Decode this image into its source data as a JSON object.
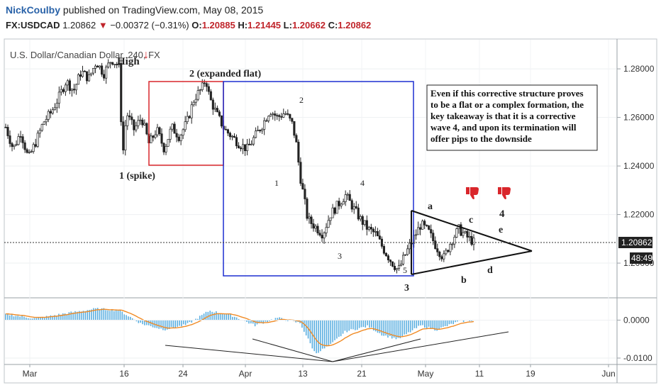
{
  "header": {
    "author": "NickCoulby",
    "published_text": "published on TradingView.com, May 08, 2015",
    "symbol": "FX:USDCAD",
    "last": "1.20862",
    "change_arrow": "▼",
    "change": "−0.00372 (−0.31%)",
    "o_label": "O:",
    "o": "1.20885",
    "h_label": "H:",
    "h": "1.21445",
    "l_label": "L:",
    "l": "1.20662",
    "c_label": "C:",
    "c": "1.20862"
  },
  "chart_data": [
    {
      "type": "candlestick",
      "title": "U.S. Dollar/Canadian Dollar, 240, FX",
      "y_ticks": [
        "1.28000",
        "1.26000",
        "1.24000",
        "1.22000",
        "1.20000"
      ],
      "ylim": [
        1.186,
        1.292
      ],
      "x_ticks": [
        "Mar",
        "16",
        "24",
        "Apr",
        "13",
        "21",
        "May",
        "11",
        "19",
        "Jun"
      ],
      "last_price_label": "1.20862",
      "countdown_label": "48:49",
      "price_path": [
        [
          0,
          1.256
        ],
        [
          1,
          1.247
        ],
        [
          2,
          1.254
        ],
        [
          3,
          1.243
        ],
        [
          4,
          1.25
        ],
        [
          5,
          1.258
        ],
        [
          6,
          1.262
        ],
        [
          7,
          1.268
        ],
        [
          8,
          1.275
        ],
        [
          9,
          1.271
        ],
        [
          10,
          1.279
        ],
        [
          11,
          1.276
        ],
        [
          12,
          1.283
        ],
        [
          13,
          1.278
        ],
        [
          14,
          1.284
        ],
        [
          15,
          1.281
        ],
        [
          15.5,
          1.244
        ],
        [
          16,
          1.262
        ],
        [
          17,
          1.255
        ],
        [
          18,
          1.26
        ],
        [
          19,
          1.249
        ],
        [
          20,
          1.255
        ],
        [
          21,
          1.247
        ],
        [
          22,
          1.256
        ],
        [
          23,
          1.252
        ],
        [
          24,
          1.258
        ],
        [
          25,
          1.268
        ],
        [
          26,
          1.272
        ],
        [
          26.5,
          1.276
        ],
        [
          27,
          1.268
        ],
        [
          28,
          1.261
        ],
        [
          29,
          1.255
        ],
        [
          30,
          1.252
        ],
        [
          31,
          1.249
        ],
        [
          32,
          1.247
        ],
        [
          33,
          1.252
        ],
        [
          34,
          1.257
        ],
        [
          35,
          1.263
        ],
        [
          36,
          1.26
        ],
        [
          37,
          1.262
        ],
        [
          38,
          1.257
        ],
        [
          38.5,
          1.249
        ],
        [
          39,
          1.236
        ],
        [
          40,
          1.218
        ],
        [
          41,
          1.215
        ],
        [
          42,
          1.212
        ],
        [
          43,
          1.22
        ],
        [
          44,
          1.224
        ],
        [
          45,
          1.228
        ],
        [
          46,
          1.223
        ],
        [
          47,
          1.218
        ],
        [
          48,
          1.214
        ],
        [
          49,
          1.212
        ],
        [
          50,
          1.206
        ],
        [
          51,
          1.201
        ],
        [
          52,
          1.197
        ],
        [
          53,
          1.204
        ],
        [
          54,
          1.21
        ],
        [
          55,
          1.216
        ],
        [
          56,
          1.213
        ],
        [
          57,
          1.207
        ],
        [
          58,
          1.202
        ],
        [
          59,
          1.209
        ],
        [
          60,
          1.214
        ],
        [
          61,
          1.211
        ],
        [
          62,
          1.2086
        ]
      ],
      "macd_path": [
        [
          0,
          0.0016
        ],
        [
          4,
          0.0004
        ],
        [
          8,
          0.0018
        ],
        [
          12,
          0.003
        ],
        [
          15,
          0.0026
        ],
        [
          18,
          -0.001
        ],
        [
          21,
          -0.0025
        ],
        [
          24,
          -0.0012
        ],
        [
          27,
          0.0025
        ],
        [
          30,
          0.0012
        ],
        [
          33,
          -0.0014
        ],
        [
          36,
          0.0006
        ],
        [
          39,
          -0.0008
        ],
        [
          41,
          -0.0088
        ],
        [
          43,
          -0.0066
        ],
        [
          45,
          -0.003
        ],
        [
          48,
          -0.0016
        ],
        [
          50,
          -0.004
        ],
        [
          52,
          -0.005
        ],
        [
          55,
          -0.0014
        ],
        [
          57,
          -0.0026
        ],
        [
          60,
          -0.0004
        ],
        [
          62,
          0.0
        ]
      ],
      "macd_ticks": [
        "0.0000",
        "-0.0100"
      ],
      "macd_ylim": [
        -0.0115,
        0.0055
      ]
    }
  ],
  "annotations": {
    "high": "High",
    "spike": "1 (spike)",
    "expanded_flat": "2 (expanded flat)",
    "w1": "1",
    "w2": "2",
    "w3": "3",
    "w4": "4",
    "w5": "5",
    "wave3": "3",
    "a": "a",
    "b": "b",
    "c": "c",
    "d": "d",
    "e": "e",
    "four": "4",
    "note_line1": "Even if this corrective structure proves",
    "note_line2": "to be a flat or a complex formation, the",
    "note_line3": "key takeaway is that it is a corrective",
    "note_line4": "wave 4, and upon its termination will",
    "note_line5": "offer pips to the downside"
  }
}
